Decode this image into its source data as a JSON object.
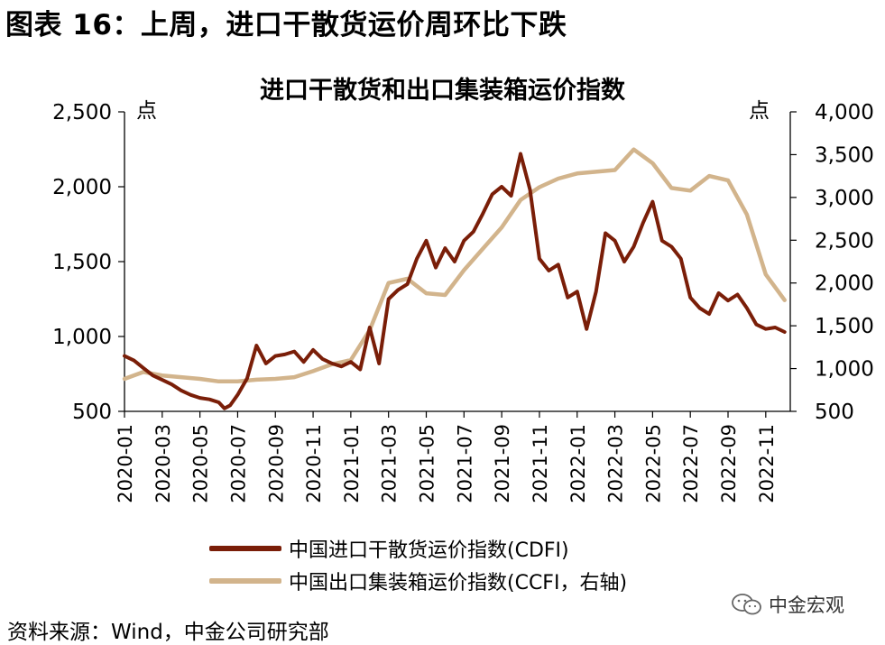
{
  "figure_title": "图表 16：上周，进口干散货运价周环比下跌",
  "source_note": "资料来源：Wind，中金公司研究部",
  "watermark": "中金宏观",
  "colors": {
    "cdfi": "#7a1e08",
    "ccfi": "#d2b48c"
  },
  "chart_data": {
    "type": "line",
    "title": "进口干散货和出口集装箱运价指数",
    "ylabel_left": "点",
    "ylabel_right": "点",
    "ylim_left": [
      500,
      2500
    ],
    "ylim_right": [
      500,
      4000
    ],
    "yticks_left": [
      "500",
      "1,000",
      "1,500",
      "2,000",
      "2,500"
    ],
    "yticks_right": [
      "500",
      "1,000",
      "1,500",
      "2,000",
      "2,500",
      "3,000",
      "3,500",
      "4,000"
    ],
    "xlim": [
      0,
      35.3
    ],
    "xticks": [
      "2020-01",
      "2020-03",
      "2020-05",
      "2020-07",
      "2020-09",
      "2020-11",
      "2021-01",
      "2021-03",
      "2021-05",
      "2021-07",
      "2021-09",
      "2021-11",
      "2022-01",
      "2022-03",
      "2022-05",
      "2022-07",
      "2022-09",
      "2022-11"
    ],
    "series": [
      {
        "name": "中国进口干散货运价指数(CDFI)",
        "axis": "left",
        "x": [
          0,
          0.5,
          1,
          1.5,
          2,
          2.5,
          3,
          3.5,
          4,
          4.5,
          5,
          5.3,
          5.6,
          6,
          6.5,
          7,
          7.5,
          8,
          8.5,
          9,
          9.5,
          10,
          10.5,
          11,
          11.5,
          12,
          12.5,
          13,
          13.5,
          14,
          14.5,
          15,
          15.5,
          16,
          16.5,
          17,
          17.5,
          18,
          18.5,
          19,
          19.5,
          20,
          20.5,
          21,
          21.5,
          22,
          22.5,
          23,
          23.5,
          24,
          24.5,
          25,
          25.5,
          26,
          26.5,
          27,
          27.5,
          28,
          28.5,
          29,
          29.5,
          30,
          30.5,
          31,
          31.5,
          32,
          32.5,
          33,
          33.5,
          34,
          34.5,
          35
        ],
        "values": [
          870,
          840,
          790,
          740,
          710,
          680,
          640,
          610,
          590,
          580,
          560,
          520,
          540,
          610,
          720,
          940,
          820,
          870,
          880,
          900,
          830,
          910,
          850,
          820,
          800,
          830,
          780,
          1060,
          820,
          1250,
          1310,
          1350,
          1520,
          1640,
          1460,
          1590,
          1500,
          1640,
          1700,
          1820,
          1950,
          2000,
          1940,
          2220,
          1980,
          1520,
          1440,
          1480,
          1260,
          1300,
          1050,
          1300,
          1690,
          1640,
          1500,
          1600,
          1760,
          1900,
          1640,
          1600,
          1520,
          1260,
          1190,
          1150,
          1290,
          1240,
          1280,
          1190,
          1080,
          1050,
          1060,
          1030
        ]
      },
      {
        "name": "中国出口集装箱运价指数(CCFI，右轴)",
        "axis": "right",
        "x": [
          0,
          1,
          2,
          3,
          4,
          5,
          6,
          7,
          8,
          9,
          10,
          11,
          12,
          13,
          14,
          15,
          16,
          17,
          18,
          19,
          20,
          21,
          22,
          23,
          24,
          25,
          26,
          27,
          28,
          29,
          30,
          31,
          32,
          33,
          34,
          35
        ],
        "values": [
          880,
          960,
          920,
          900,
          880,
          850,
          850,
          870,
          880,
          900,
          970,
          1050,
          1100,
          1450,
          2000,
          2050,
          1880,
          1860,
          2150,
          2400,
          2650,
          2970,
          3120,
          3220,
          3280,
          3300,
          3320,
          3560,
          3400,
          3110,
          3080,
          3250,
          3200,
          2800,
          2100,
          1800
        ]
      }
    ]
  }
}
